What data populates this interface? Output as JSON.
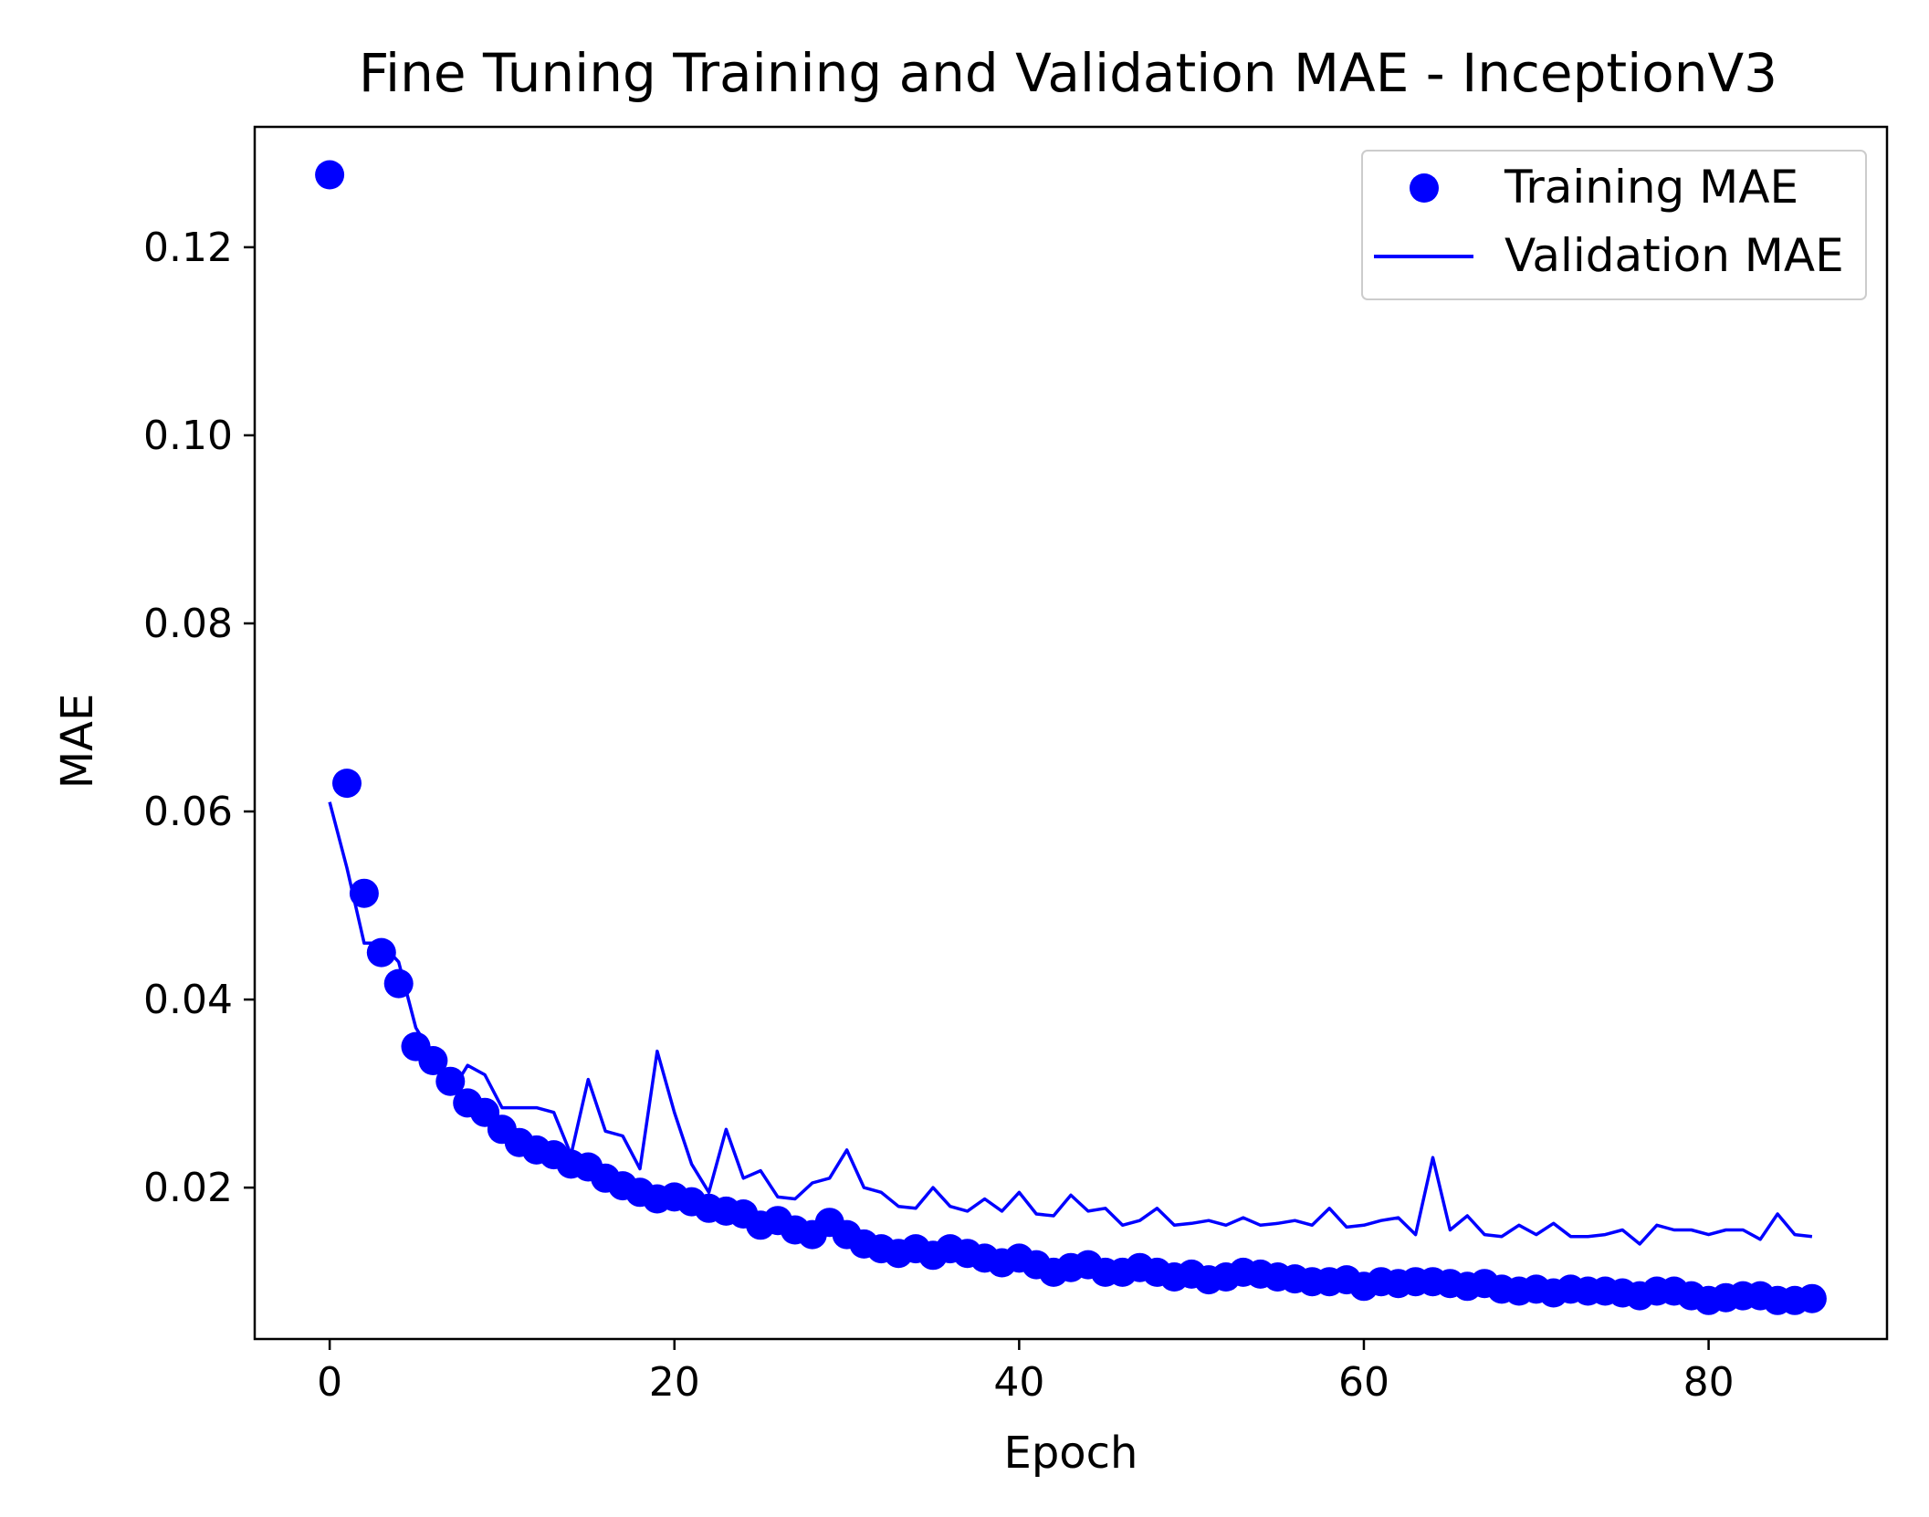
{
  "chart_data": {
    "type": "scatter",
    "title": "Fine Tuning Training and Validation MAE - InceptionV3",
    "xlabel": "Epoch",
    "ylabel": "MAE",
    "xlim": [
      -4.35,
      90.35
    ],
    "ylim": [
      0.0039,
      0.1328
    ],
    "xticks": [
      0,
      20,
      40,
      60,
      80
    ],
    "xtick_labels": [
      "0",
      "20",
      "40",
      "60",
      "80"
    ],
    "yticks": [
      0.02,
      0.04,
      0.06,
      0.08,
      0.1,
      0.12
    ],
    "ytick_labels": [
      "0.02",
      "0.04",
      "0.06",
      "0.08",
      "0.10",
      "0.12"
    ],
    "grid": false,
    "legend_position": "top-right",
    "series": [
      {
        "name": "Training MAE",
        "style": "dots",
        "color": "#0000ff",
        "x": [
          0,
          1,
          2,
          3,
          4,
          5,
          6,
          7,
          8,
          9,
          10,
          11,
          12,
          13,
          14,
          15,
          16,
          17,
          18,
          19,
          20,
          21,
          22,
          23,
          24,
          25,
          26,
          27,
          28,
          29,
          30,
          31,
          32,
          33,
          34,
          35,
          36,
          37,
          38,
          39,
          40,
          41,
          42,
          43,
          44,
          45,
          46,
          47,
          48,
          49,
          50,
          51,
          52,
          53,
          54,
          55,
          56,
          57,
          58,
          59,
          60,
          61,
          62,
          63,
          64,
          65,
          66,
          67,
          68,
          69,
          70,
          71,
          72,
          73,
          74,
          75,
          76,
          77,
          78,
          79,
          80,
          81,
          82,
          83,
          84,
          85,
          86
        ],
        "y": [
          0.1277,
          0.063,
          0.0513,
          0.045,
          0.0417,
          0.035,
          0.0335,
          0.0313,
          0.029,
          0.028,
          0.0262,
          0.0248,
          0.024,
          0.0235,
          0.0225,
          0.0222,
          0.021,
          0.0202,
          0.0195,
          0.0188,
          0.019,
          0.0185,
          0.0178,
          0.0175,
          0.0172,
          0.016,
          0.0165,
          0.0155,
          0.015,
          0.0163,
          0.015,
          0.014,
          0.0135,
          0.013,
          0.0135,
          0.0128,
          0.0135,
          0.013,
          0.0125,
          0.012,
          0.0125,
          0.0118,
          0.011,
          0.0115,
          0.0118,
          0.011,
          0.011,
          0.0115,
          0.011,
          0.0105,
          0.0108,
          0.0102,
          0.0105,
          0.011,
          0.0108,
          0.0105,
          0.0103,
          0.01,
          0.01,
          0.0102,
          0.0095,
          0.01,
          0.0098,
          0.01,
          0.01,
          0.0098,
          0.0095,
          0.0098,
          0.0092,
          0.009,
          0.0092,
          0.0088,
          0.0092,
          0.009,
          0.009,
          0.0088,
          0.0085,
          0.009,
          0.009,
          0.0085,
          0.008,
          0.0083,
          0.0085,
          0.0085,
          0.008,
          0.008,
          0.0082
        ]
      },
      {
        "name": "Validation MAE",
        "style": "line",
        "color": "#0000ff",
        "x": [
          0,
          1,
          2,
          3,
          4,
          5,
          6,
          7,
          8,
          9,
          10,
          11,
          12,
          13,
          14,
          15,
          16,
          17,
          18,
          19,
          20,
          21,
          22,
          23,
          24,
          25,
          26,
          27,
          28,
          29,
          30,
          31,
          32,
          33,
          34,
          35,
          36,
          37,
          38,
          39,
          40,
          41,
          42,
          43,
          44,
          45,
          46,
          47,
          48,
          49,
          50,
          51,
          52,
          53,
          54,
          55,
          56,
          57,
          58,
          59,
          60,
          61,
          62,
          63,
          64,
          65,
          66,
          67,
          68,
          69,
          70,
          71,
          72,
          73,
          74,
          75,
          76,
          77,
          78,
          79,
          80,
          81,
          82,
          83,
          84,
          85,
          86
        ],
        "y": [
          0.061,
          0.054,
          0.046,
          0.046,
          0.044,
          0.037,
          0.034,
          0.03,
          0.033,
          0.032,
          0.0285,
          0.0285,
          0.0285,
          0.028,
          0.0235,
          0.0315,
          0.026,
          0.0255,
          0.022,
          0.0345,
          0.028,
          0.0225,
          0.0195,
          0.0262,
          0.021,
          0.0218,
          0.019,
          0.0188,
          0.0205,
          0.021,
          0.024,
          0.02,
          0.0195,
          0.018,
          0.0178,
          0.02,
          0.018,
          0.0175,
          0.0188,
          0.0175,
          0.0195,
          0.0172,
          0.017,
          0.0192,
          0.0175,
          0.0178,
          0.016,
          0.0165,
          0.0178,
          0.016,
          0.0162,
          0.0165,
          0.016,
          0.0168,
          0.016,
          0.0162,
          0.0165,
          0.016,
          0.0178,
          0.0158,
          0.016,
          0.0165,
          0.0168,
          0.015,
          0.0232,
          0.0155,
          0.017,
          0.015,
          0.0148,
          0.016,
          0.015,
          0.0162,
          0.0148,
          0.0148,
          0.015,
          0.0155,
          0.014,
          0.016,
          0.0155,
          0.0155,
          0.015,
          0.0155,
          0.0155,
          0.0145,
          0.0172,
          0.015,
          0.0148
        ]
      }
    ]
  }
}
